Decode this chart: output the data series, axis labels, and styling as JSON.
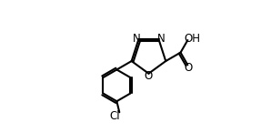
{
  "background_color": "#ffffff",
  "line_color": "#000000",
  "line_width": 1.5,
  "font_size": 8.5,
  "atoms": {
    "N_label": "N",
    "O_label": "O",
    "Cl_label": "Cl",
    "OH_label": "OH",
    "CO_label": "O"
  },
  "xlim": [
    0.0,
    9.0
  ],
  "ylim": [
    0.5,
    6.5
  ]
}
